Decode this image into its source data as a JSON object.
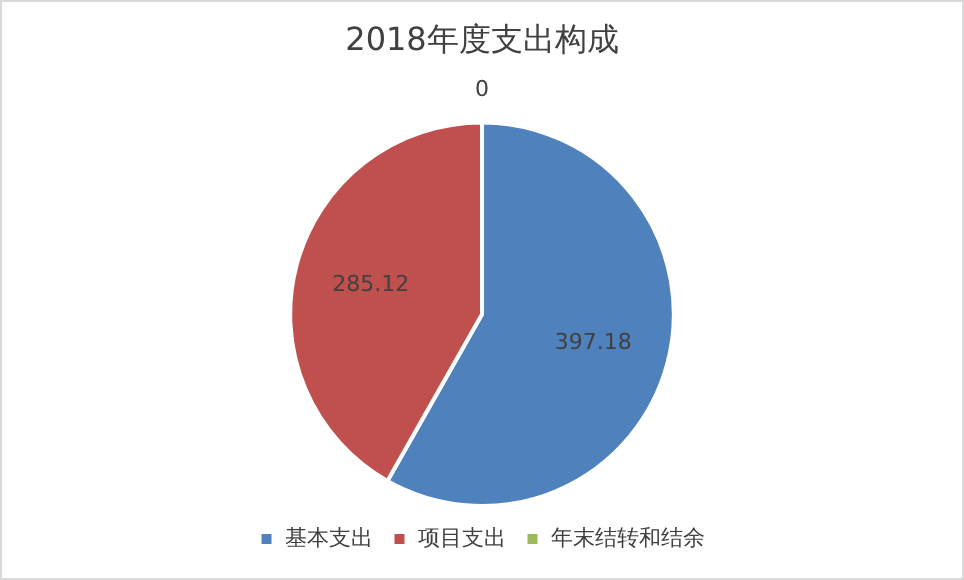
{
  "chart_data": {
    "type": "pie",
    "title": "2018年度支出构成",
    "categories": [
      "基本支出",
      "项目支出",
      "年末结转和结余"
    ],
    "values": [
      397.18,
      285.12,
      0
    ],
    "value_labels": [
      "397.18",
      "285.12",
      "0"
    ],
    "colors": [
      "#4f81bd",
      "#c0504d",
      "#9bbb59"
    ],
    "legend": "bottom"
  }
}
